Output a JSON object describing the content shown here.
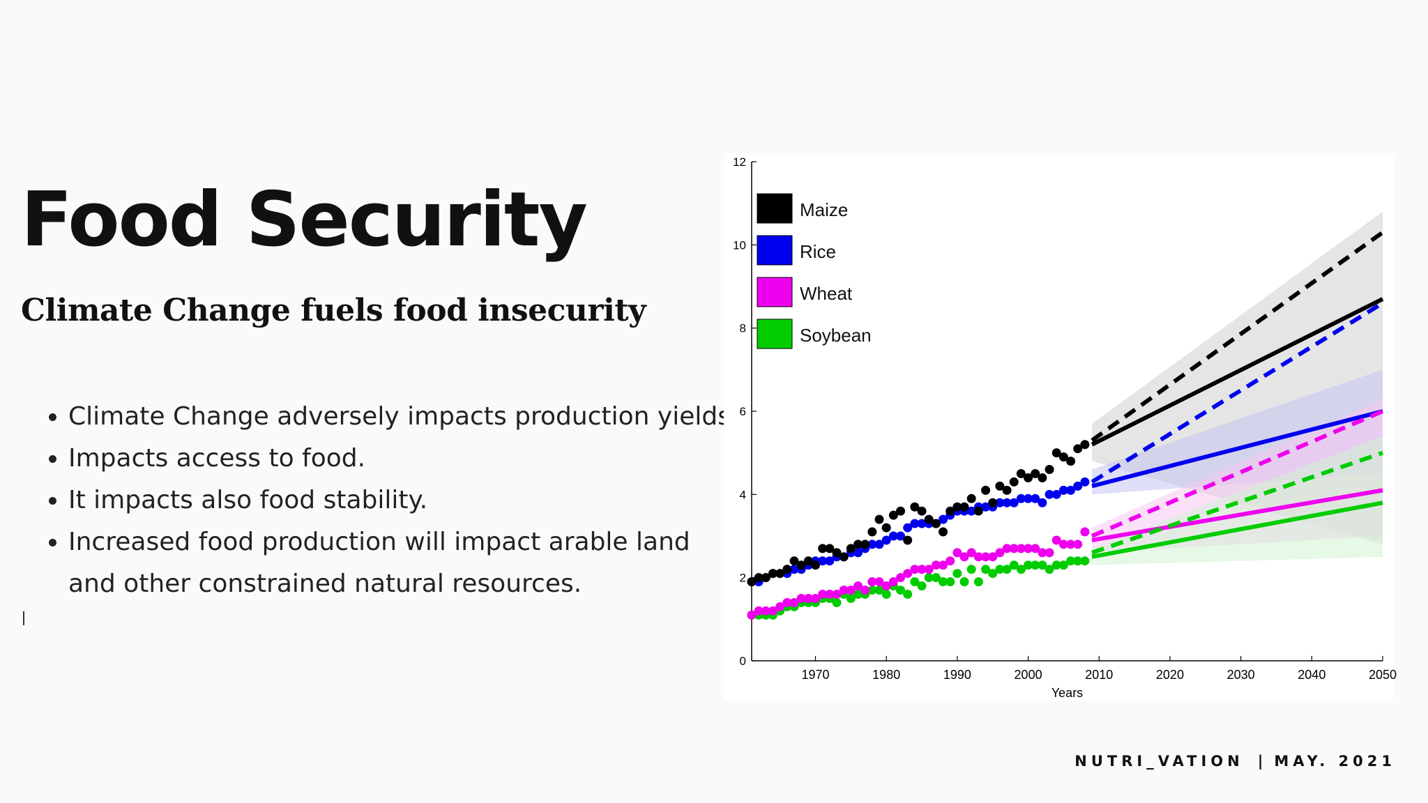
{
  "slide": {
    "title": "Food Security",
    "subtitle": "Climate Change fuels food insecurity",
    "bullets": [
      "Climate Change adversely impacts production yields.",
      "Impacts access to food.",
      "It impacts also food stability.",
      "Increased food production will impact arable land and other constrained natural resources."
    ],
    "footer": {
      "brand": "NUTRI_VATION",
      "date": "MAY. 2021"
    }
  },
  "chart_data": {
    "type": "line",
    "title": "",
    "xlabel": "Years",
    "ylabel": "",
    "xlim": [
      1961,
      2050
    ],
    "ylim": [
      0,
      12
    ],
    "x_ticks": [
      1970,
      1980,
      1990,
      2000,
      2010,
      2020,
      2030,
      2040,
      2050
    ],
    "x_tick_labels": [
      "1970",
      "1980",
      "1990",
      "2000",
      "2010",
      "2020",
      "2030",
      "2040",
      "2050"
    ],
    "y_ticks": [
      0,
      2,
      4,
      6,
      8,
      10,
      12
    ],
    "y_tick_labels": [
      "0",
      "2",
      "4",
      "6",
      "8",
      "10",
      "12"
    ],
    "legend_position": "top-left",
    "series": [
      {
        "name": "Maize",
        "color": "#000000",
        "band_color": "#cfcfcf",
        "observed_start": 1961,
        "observed_end": 2008,
        "observed": [
          1.9,
          2.0,
          2.0,
          2.1,
          2.1,
          2.2,
          2.4,
          2.3,
          2.4,
          2.3,
          2.7,
          2.7,
          2.6,
          2.5,
          2.7,
          2.8,
          2.8,
          3.1,
          3.4,
          3.2,
          3.5,
          3.6,
          2.9,
          3.7,
          3.6,
          3.4,
          3.3,
          3.1,
          3.6,
          3.7,
          3.7,
          3.9,
          3.6,
          4.1,
          3.8,
          4.2,
          4.1,
          4.3,
          4.5,
          4.4,
          4.5,
          4.4,
          4.6,
          5.0,
          4.9,
          4.8,
          5.1,
          5.2
        ],
        "projection_solid": [
          [
            2009,
            5.2
          ],
          [
            2050,
            8.7
          ]
        ],
        "projection_dashed": [
          [
            2009,
            5.3
          ],
          [
            2050,
            10.3
          ]
        ],
        "band_start": [
          2009,
          4.8,
          5.7
        ],
        "band_end": [
          2050,
          2.8,
          10.8
        ]
      },
      {
        "name": "Rice",
        "color": "#0000ee",
        "band_color": "#c4c4f2",
        "observed_start": 1961,
        "observed_end": 2008,
        "observed": [
          1.9,
          1.9,
          2.0,
          2.1,
          2.1,
          2.1,
          2.2,
          2.2,
          2.3,
          2.4,
          2.4,
          2.4,
          2.5,
          2.5,
          2.6,
          2.6,
          2.7,
          2.8,
          2.8,
          2.9,
          3.0,
          3.0,
          3.2,
          3.3,
          3.3,
          3.3,
          3.3,
          3.4,
          3.5,
          3.6,
          3.6,
          3.6,
          3.7,
          3.7,
          3.7,
          3.8,
          3.8,
          3.8,
          3.9,
          3.9,
          3.9,
          3.8,
          4.0,
          4.0,
          4.1,
          4.1,
          4.2,
          4.3
        ],
        "projection_solid": [
          [
            2009,
            4.2
          ],
          [
            2050,
            6.0
          ]
        ],
        "projection_dashed": [
          [
            2009,
            4.3
          ],
          [
            2050,
            8.6
          ]
        ],
        "band_start": [
          2009,
          4.0,
          4.6
        ],
        "band_end": [
          2050,
          4.5,
          7.0
        ]
      },
      {
        "name": "Wheat",
        "color": "#ee00ee",
        "band_color": "#f6c8f2",
        "observed_start": 1961,
        "observed_end": 2008,
        "observed": [
          1.1,
          1.2,
          1.2,
          1.2,
          1.3,
          1.4,
          1.4,
          1.5,
          1.5,
          1.5,
          1.6,
          1.6,
          1.6,
          1.7,
          1.7,
          1.8,
          1.7,
          1.9,
          1.9,
          1.8,
          1.9,
          2.0,
          2.1,
          2.2,
          2.2,
          2.2,
          2.3,
          2.3,
          2.4,
          2.6,
          2.5,
          2.6,
          2.5,
          2.5,
          2.5,
          2.6,
          2.7,
          2.7,
          2.7,
          2.7,
          2.7,
          2.6,
          2.6,
          2.9,
          2.8,
          2.8,
          2.8,
          3.1
        ],
        "projection_solid": [
          [
            2009,
            2.9
          ],
          [
            2050,
            4.1
          ]
        ],
        "projection_dashed": [
          [
            2009,
            3.0
          ],
          [
            2050,
            6.0
          ]
        ],
        "band_start": [
          2009,
          2.6,
          3.2
        ],
        "band_end": [
          2050,
          3.0,
          6.3
        ]
      },
      {
        "name": "Soybean",
        "color": "#00cc00",
        "band_color": "#d2f2d2",
        "observed_start": 1961,
        "observed_end": 2008,
        "observed": [
          1.1,
          1.1,
          1.1,
          1.1,
          1.2,
          1.3,
          1.3,
          1.4,
          1.4,
          1.4,
          1.5,
          1.5,
          1.4,
          1.6,
          1.5,
          1.6,
          1.6,
          1.7,
          1.7,
          1.6,
          1.8,
          1.7,
          1.6,
          1.9,
          1.8,
          2.0,
          2.0,
          1.9,
          1.9,
          2.1,
          1.9,
          2.2,
          1.9,
          2.2,
          2.1,
          2.2,
          2.2,
          2.3,
          2.2,
          2.3,
          2.3,
          2.3,
          2.2,
          2.3,
          2.3,
          2.4,
          2.4,
          2.4
        ],
        "projection_solid": [
          [
            2009,
            2.5
          ],
          [
            2050,
            3.8
          ]
        ],
        "projection_dashed": [
          [
            2009,
            2.6
          ],
          [
            2050,
            5.0
          ]
        ],
        "band_start": [
          2009,
          2.3,
          2.7
        ],
        "band_end": [
          2050,
          2.5,
          5.4
        ]
      }
    ]
  }
}
